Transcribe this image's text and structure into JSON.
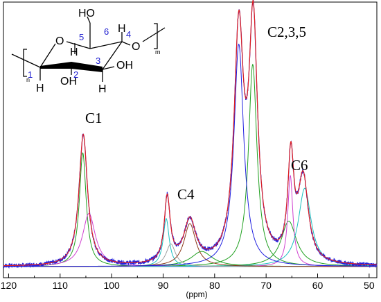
{
  "chart_data": {
    "type": "line",
    "xlabel": "(ppm)",
    "ylabel": "",
    "x_reversed": true,
    "xlim": [
      121,
      48.5
    ],
    "ylim": [
      0,
      100
    ],
    "x_ticks": [
      120,
      110,
      100,
      90,
      80,
      70,
      60,
      50
    ],
    "grid": false,
    "legend": "none",
    "peak_labels": [
      {
        "text": "C1",
        "ppm": 105.5
      },
      {
        "text": "C4",
        "ppm": 86.5
      },
      {
        "text": "C2,3,5",
        "ppm": 73
      },
      {
        "text": "C6",
        "ppm": 64
      }
    ],
    "series": [
      {
        "color": "#2020e0",
        "style": "noisy",
        "role": "experimental",
        "peaks": [
          [
            105.5,
            52,
            1.0
          ],
          [
            89.2,
            26,
            0.7
          ],
          [
            84.8,
            17,
            1.4
          ],
          [
            75.3,
            90,
            1.1
          ],
          [
            72.5,
            92,
            1.0
          ],
          [
            65.2,
            40,
            0.7
          ],
          [
            62.8,
            33,
            1.2
          ]
        ]
      },
      {
        "color": "#e02020",
        "style": "smooth",
        "role": "fit",
        "peaks": [
          [
            105.5,
            52,
            1.0
          ],
          [
            89.2,
            26,
            0.7
          ],
          [
            84.8,
            17,
            1.4
          ],
          [
            75.3,
            90,
            1.1
          ],
          [
            72.5,
            92,
            1.0
          ],
          [
            65.2,
            40,
            0.7
          ],
          [
            62.8,
            33,
            1.2
          ]
        ]
      },
      {
        "color": "#20a020",
        "style": "smooth",
        "peaks": [
          [
            105.6,
            45,
            0.8
          ]
        ]
      },
      {
        "color": "#20a020",
        "style": "smooth",
        "peaks": [
          [
            82.5,
            6,
            2.5
          ]
        ]
      },
      {
        "color": "#20a020",
        "style": "smooth",
        "peaks": [
          [
            72.6,
            80,
            1.0
          ]
        ]
      },
      {
        "color": "#20a020",
        "style": "smooth",
        "peaks": [
          [
            65.6,
            18,
            1.8
          ]
        ]
      },
      {
        "color": "#d040d0",
        "style": "smooth",
        "peaks": [
          [
            104.4,
            21,
            1.5
          ]
        ]
      },
      {
        "color": "#d040d0",
        "style": "smooth",
        "peaks": [
          [
            65.3,
            36,
            0.6
          ]
        ]
      },
      {
        "color": "#18c0c0",
        "style": "smooth",
        "peaks": [
          [
            89.4,
            19,
            0.7
          ]
        ]
      },
      {
        "color": "#18c0c0",
        "style": "smooth",
        "peaks": [
          [
            62.5,
            31,
            1.5
          ]
        ]
      },
      {
        "color": "#a0a0a0",
        "style": "smooth",
        "peaks": [
          [
            88.5,
            9,
            1.1
          ]
        ]
      },
      {
        "color": "#8b3a1a",
        "style": "smooth",
        "peaks": [
          [
            84.8,
            17,
            1.4
          ]
        ]
      },
      {
        "color": "#2020e0",
        "style": "smooth",
        "peaks": [
          [
            75.3,
            88,
            1.15
          ]
        ]
      }
    ]
  },
  "structure": {
    "atoms": {
      "O_ring": "O",
      "O_link": "O",
      "OH_top": "HO",
      "OH_2": "OH",
      "OH_3": "OH",
      "H_left": "H",
      "H_5": "H",
      "H_4": "H",
      "H_2": "H",
      "H_3": "H",
      "sub_n": "n",
      "sub_m": "m"
    },
    "numbers": [
      "1",
      "2",
      "3",
      "4",
      "5",
      "6"
    ]
  }
}
